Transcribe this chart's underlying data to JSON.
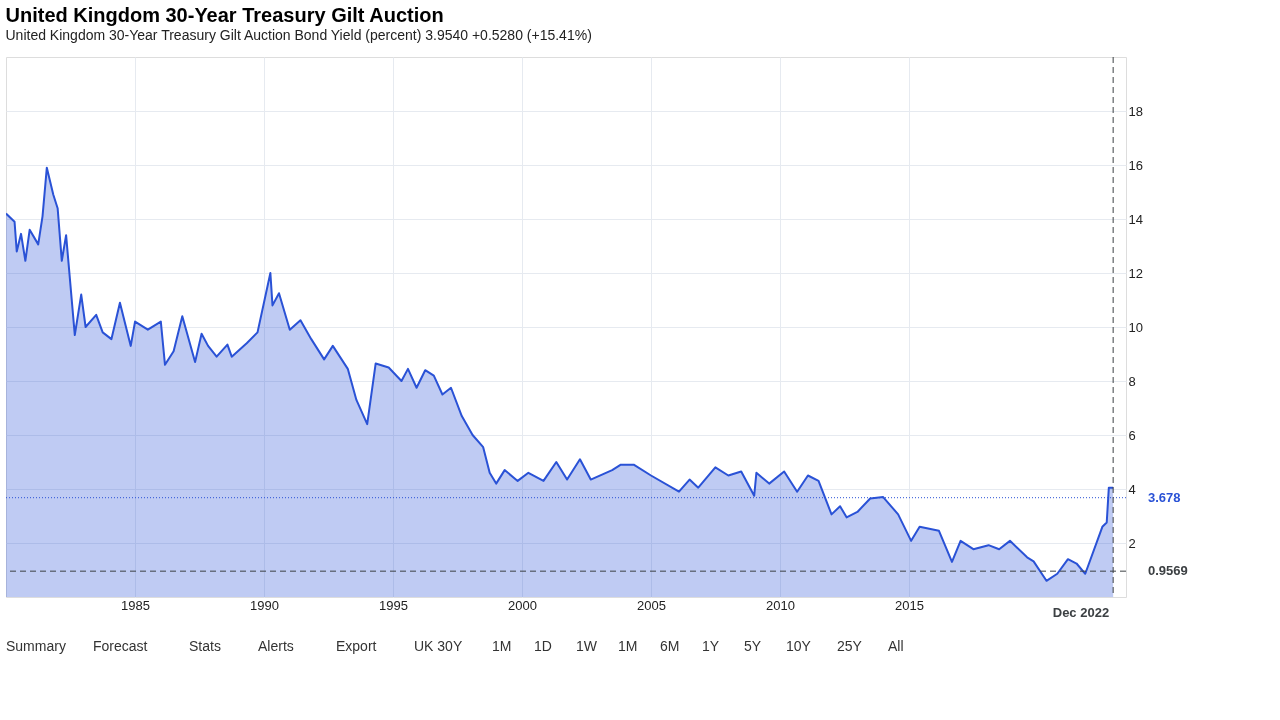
{
  "chart_data": {
    "type": "area",
    "title": "United Kingdom 30-Year Treasury Gilt Auction",
    "subtitle": "United Kingdom 30-Year Treasury Gilt Auction Bond Yield (percent) 3.9540 +0.5280 (+15.41%)",
    "x": [
      "1980-01",
      "1980-05",
      "1980-06",
      "1980-08",
      "1980-10",
      "1980-12",
      "1981-04",
      "1981-06",
      "1981-08",
      "1981-11",
      "1982-01",
      "1982-03",
      "1982-05",
      "1982-09",
      "1982-12",
      "1983-02",
      "1983-07",
      "1983-10",
      "1984-02",
      "1984-06",
      "1984-11",
      "1985-01",
      "1985-07",
      "1986-01",
      "1986-03",
      "1986-07",
      "1986-11",
      "1987-05",
      "1987-08",
      "1987-11",
      "1988-03",
      "1988-08",
      "1988-10",
      "1989-05",
      "1989-10",
      "1990-04",
      "1990-05",
      "1990-08",
      "1991-01",
      "1991-06",
      "1991-11",
      "1992-05",
      "1992-09",
      "1993-04",
      "1993-08",
      "1994-01",
      "1994-05",
      "1994-11",
      "1995-05",
      "1995-08",
      "1995-12",
      "1996-04",
      "1996-08",
      "1996-12",
      "1997-04",
      "1997-09",
      "1998-02",
      "1998-07",
      "1998-10",
      "1999-01",
      "1999-05",
      "1999-11",
      "2000-04",
      "2000-11",
      "2001-05",
      "2001-10",
      "2002-04",
      "2002-09",
      "2003-07",
      "2003-11",
      "2004-05",
      "2005-01",
      "2006-02",
      "2006-07",
      "2006-11",
      "2007-07",
      "2008-01",
      "2008-07",
      "2009-01",
      "2009-02",
      "2009-08",
      "2010-03",
      "2010-09",
      "2011-02",
      "2011-07",
      "2012-01",
      "2012-05",
      "2012-08",
      "2013-01",
      "2013-07",
      "2014-01",
      "2014-08",
      "2015-02",
      "2015-06",
      "2016-03",
      "2016-09",
      "2017-01",
      "2017-07",
      "2018-02",
      "2018-07",
      "2018-12",
      "2019-08",
      "2019-11",
      "2020-05",
      "2020-10",
      "2021-03",
      "2021-07",
      "2021-11",
      "2022-07",
      "2022-09",
      "2022-10",
      "2022-12"
    ],
    "series": [
      {
        "color": "#2a52d6",
        "values": [
          14.2,
          13.9,
          12.8,
          13.45,
          12.45,
          13.6,
          13.06,
          14.1,
          15.9,
          14.9,
          14.4,
          12.45,
          13.4,
          9.7,
          11.2,
          10.0,
          10.45,
          9.8,
          9.55,
          10.9,
          9.3,
          10.2,
          9.9,
          10.2,
          8.6,
          9.1,
          10.4,
          8.7,
          9.75,
          9.3,
          8.9,
          9.35,
          8.9,
          9.4,
          9.8,
          12.0,
          10.8,
          11.25,
          9.9,
          10.25,
          9.55,
          8.8,
          9.3,
          8.45,
          7.3,
          6.4,
          8.65,
          8.5,
          8.0,
          8.45,
          7.75,
          8.4,
          8.2,
          7.5,
          7.75,
          6.7,
          6.0,
          5.55,
          4.6,
          4.2,
          4.7,
          4.3,
          4.6,
          4.3,
          5.0,
          4.35,
          5.1,
          4.35,
          4.7,
          4.9,
          4.9,
          4.5,
          3.9,
          4.35,
          4.05,
          4.8,
          4.5,
          4.65,
          3.75,
          4.6,
          4.2,
          4.65,
          3.9,
          4.5,
          4.3,
          3.06,
          3.36,
          2.95,
          3.15,
          3.65,
          3.7,
          3.06,
          2.08,
          2.6,
          2.45,
          1.3,
          2.08,
          1.77,
          1.92,
          1.77,
          2.08,
          1.47,
          1.32,
          0.6,
          0.86,
          1.4,
          1.24,
          0.86,
          2.6,
          2.76,
          4.05,
          4.05
        ]
      }
    ],
    "xlim": [
      "1980-01",
      "2023-06"
    ],
    "xticks": [
      {
        "value": "1985-01",
        "label": "1985"
      },
      {
        "value": "1990-01",
        "label": "1990"
      },
      {
        "value": "1995-01",
        "label": "1995"
      },
      {
        "value": "2000-01",
        "label": "2000"
      },
      {
        "value": "2005-01",
        "label": "2005"
      },
      {
        "value": "2010-01",
        "label": "2010"
      },
      {
        "value": "2015-01",
        "label": "2015"
      }
    ],
    "ylim": [
      0,
      20
    ],
    "yticks": [
      2,
      4,
      6,
      8,
      10,
      12,
      14,
      16,
      18
    ],
    "grid": true,
    "ref_lines": [
      {
        "axis": "y",
        "value": 3.678,
        "label": "3.678",
        "color": "#2a52d6",
        "line_style": "dotted"
      },
      {
        "axis": "y",
        "value": 0.9569,
        "label": "0.9569",
        "color": "#3c4043",
        "line_style": "dashed"
      },
      {
        "axis": "x",
        "value": "2022-12",
        "label": "Dec 2022",
        "color": "#3c4043",
        "line_style": "dashed"
      }
    ],
    "annotations": [
      "Summary",
      "Forecast",
      "Stats",
      "Alerts",
      "Export",
      "UK 30Y",
      "1M",
      "1D",
      "1W",
      "1M",
      "6M",
      "1Y",
      "5Y",
      "10Y",
      "25Y",
      "All"
    ]
  }
}
